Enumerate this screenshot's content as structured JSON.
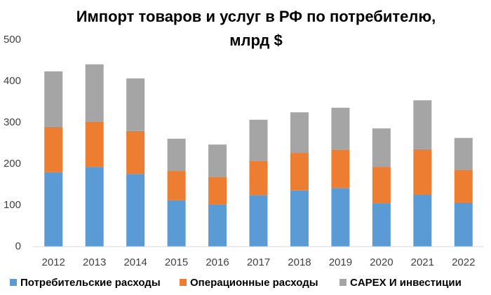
{
  "chart_data": {
    "type": "stacked_bar",
    "title": [
      "Импорт товаров и услуг в РФ по потребителю,",
      "млрд $"
    ],
    "categories": [
      "2012",
      "2013",
      "2014",
      "2015",
      "2016",
      "2017",
      "2018",
      "2019",
      "2020",
      "2021",
      "2022"
    ],
    "series": [
      {
        "name": "Потребительские расходы",
        "color": "#5b9bd5",
        "values": [
          180,
          193,
          176,
          112,
          103,
          125,
          136,
          142,
          105,
          127,
          107
        ]
      },
      {
        "name": "Операционные расходы",
        "color": "#ed7d31",
        "values": [
          110,
          110,
          104,
          71,
          66,
          83,
          91,
          92,
          88,
          109,
          79
        ]
      },
      {
        "name": "CAPEX И инвестиции",
        "color": "#a5a5a5",
        "values": [
          134,
          138,
          127,
          78,
          78,
          99,
          98,
          102,
          93,
          118,
          77
        ]
      }
    ],
    "ylim": [
      0,
      500
    ],
    "yticks": [
      0,
      100,
      200,
      300,
      400,
      500
    ],
    "grid": false,
    "legend": "bottom"
  }
}
